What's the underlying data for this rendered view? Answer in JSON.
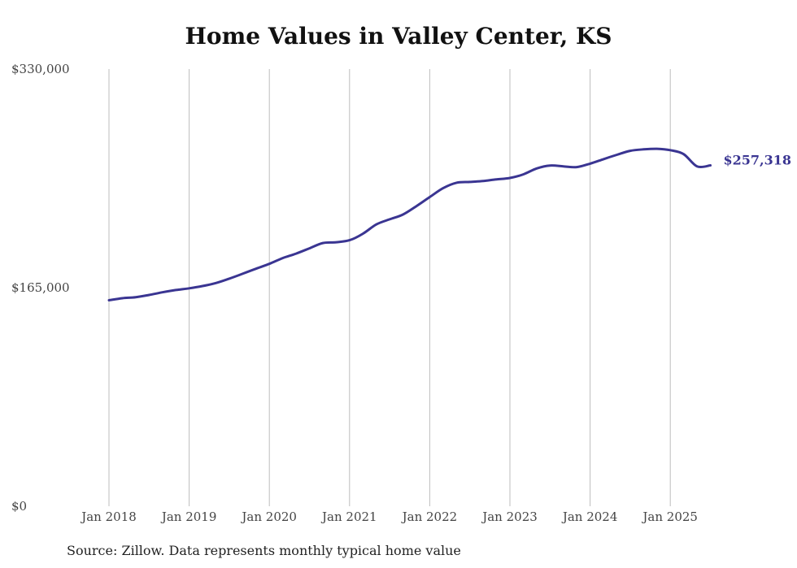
{
  "chart_data": {
    "type": "line",
    "title": "Home Values in Valley Center, KS",
    "xlabel": "",
    "ylabel": "",
    "ylim": [
      0,
      330000
    ],
    "y_ticks": [
      0,
      165000,
      330000
    ],
    "y_tick_labels": [
      "$0",
      "$165,000",
      "$330,000"
    ],
    "x_range": [
      "2018-01",
      "2025-07"
    ],
    "x_ticks": [
      "2018-01",
      "2019-01",
      "2020-01",
      "2021-01",
      "2022-01",
      "2023-01",
      "2024-01",
      "2025-01"
    ],
    "x_tick_labels": [
      "Jan 2018",
      "Jan 2019",
      "Jan 2020",
      "Jan 2021",
      "Jan 2022",
      "Jan 2023",
      "Jan 2024",
      "Jan 2025"
    ],
    "grid": "vertical",
    "line_color": "#3a3592",
    "end_label": "$257,318",
    "series": [
      {
        "x": [
          "2018-01",
          "2018-03",
          "2018-05",
          "2018-07",
          "2018-09",
          "2018-11",
          "2019-01",
          "2019-03",
          "2019-05",
          "2019-07",
          "2019-09",
          "2019-11",
          "2020-01",
          "2020-03",
          "2020-05",
          "2020-07",
          "2020-09",
          "2020-11",
          "2021-01",
          "2021-03",
          "2021-05",
          "2021-07",
          "2021-09",
          "2021-11",
          "2022-01",
          "2022-03",
          "2022-05",
          "2022-07",
          "2022-09",
          "2022-11",
          "2023-01",
          "2023-03",
          "2023-05",
          "2023-07",
          "2023-09",
          "2023-11",
          "2024-01",
          "2024-03",
          "2024-05",
          "2024-07",
          "2024-09",
          "2024-11",
          "2025-01",
          "2025-03",
          "2025-05",
          "2025-07"
        ],
        "values": [
          155500,
          157000,
          157800,
          159500,
          161500,
          163200,
          164500,
          166200,
          168500,
          171800,
          175500,
          179300,
          183000,
          187300,
          190700,
          194700,
          198700,
          199300,
          200800,
          205700,
          212700,
          216600,
          220200,
          226500,
          233400,
          240100,
          244200,
          244800,
          245500,
          246700,
          247800,
          250500,
          255000,
          257200,
          256600,
          256000,
          258600,
          262000,
          265300,
          268300,
          269400,
          269800,
          268800,
          265800,
          256500,
          257318
        ]
      }
    ]
  },
  "source_note": "Source: Zillow. Data represents monthly typical home value"
}
